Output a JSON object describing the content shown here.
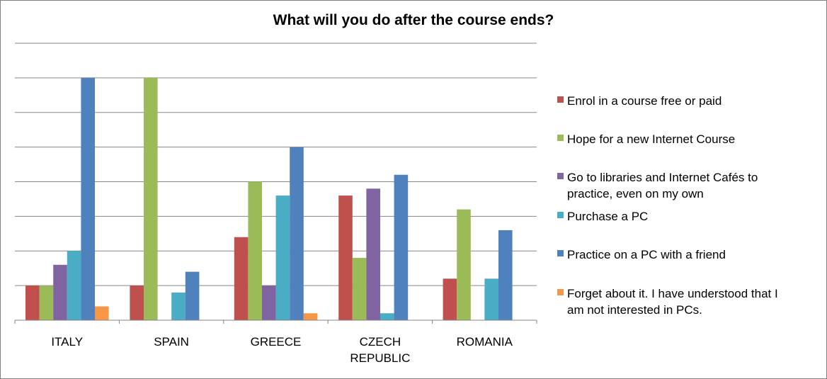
{
  "chart_data": {
    "type": "bar",
    "title": "What will you do after the course ends?",
    "xlabel": "",
    "ylabel": "",
    "ylim": [
      0,
      8
    ],
    "grid": true,
    "legend_position": "right",
    "categories": [
      [
        "ITALY"
      ],
      [
        "SPAIN"
      ],
      [
        "GREECE"
      ],
      [
        "CZECH",
        "REPUBLIC"
      ],
      [
        "ROMANIA"
      ]
    ],
    "series": [
      {
        "name": [
          "Enrol in a course free or paid"
        ],
        "color": "#C0504D",
        "values": [
          1,
          1,
          2.4,
          3.6,
          1.2
        ]
      },
      {
        "name": [
          "Hope for a new Internet Course"
        ],
        "color": "#9BBB59",
        "values": [
          1,
          7,
          4,
          1.8,
          3.2
        ]
      },
      {
        "name": [
          "Go to libraries and Internet Cafés to",
          "practice, even on my own"
        ],
        "color": "#8064A2",
        "values": [
          1.6,
          0,
          1,
          3.8,
          0
        ]
      },
      {
        "name": [
          "Purchase a PC"
        ],
        "color": "#4BACC6",
        "values": [
          2,
          0.8,
          3.6,
          0.2,
          1.2
        ]
      },
      {
        "name": [
          "Practice on a PC with a friend"
        ],
        "color": "#4F81BD",
        "values": [
          7,
          1.4,
          5,
          4.2,
          2.6
        ]
      },
      {
        "name": [
          "Forget about it. I have understood that I",
          "am not interested in PCs."
        ],
        "color": "#F79646",
        "values": [
          0.4,
          0,
          0.2,
          0,
          0
        ]
      }
    ]
  }
}
